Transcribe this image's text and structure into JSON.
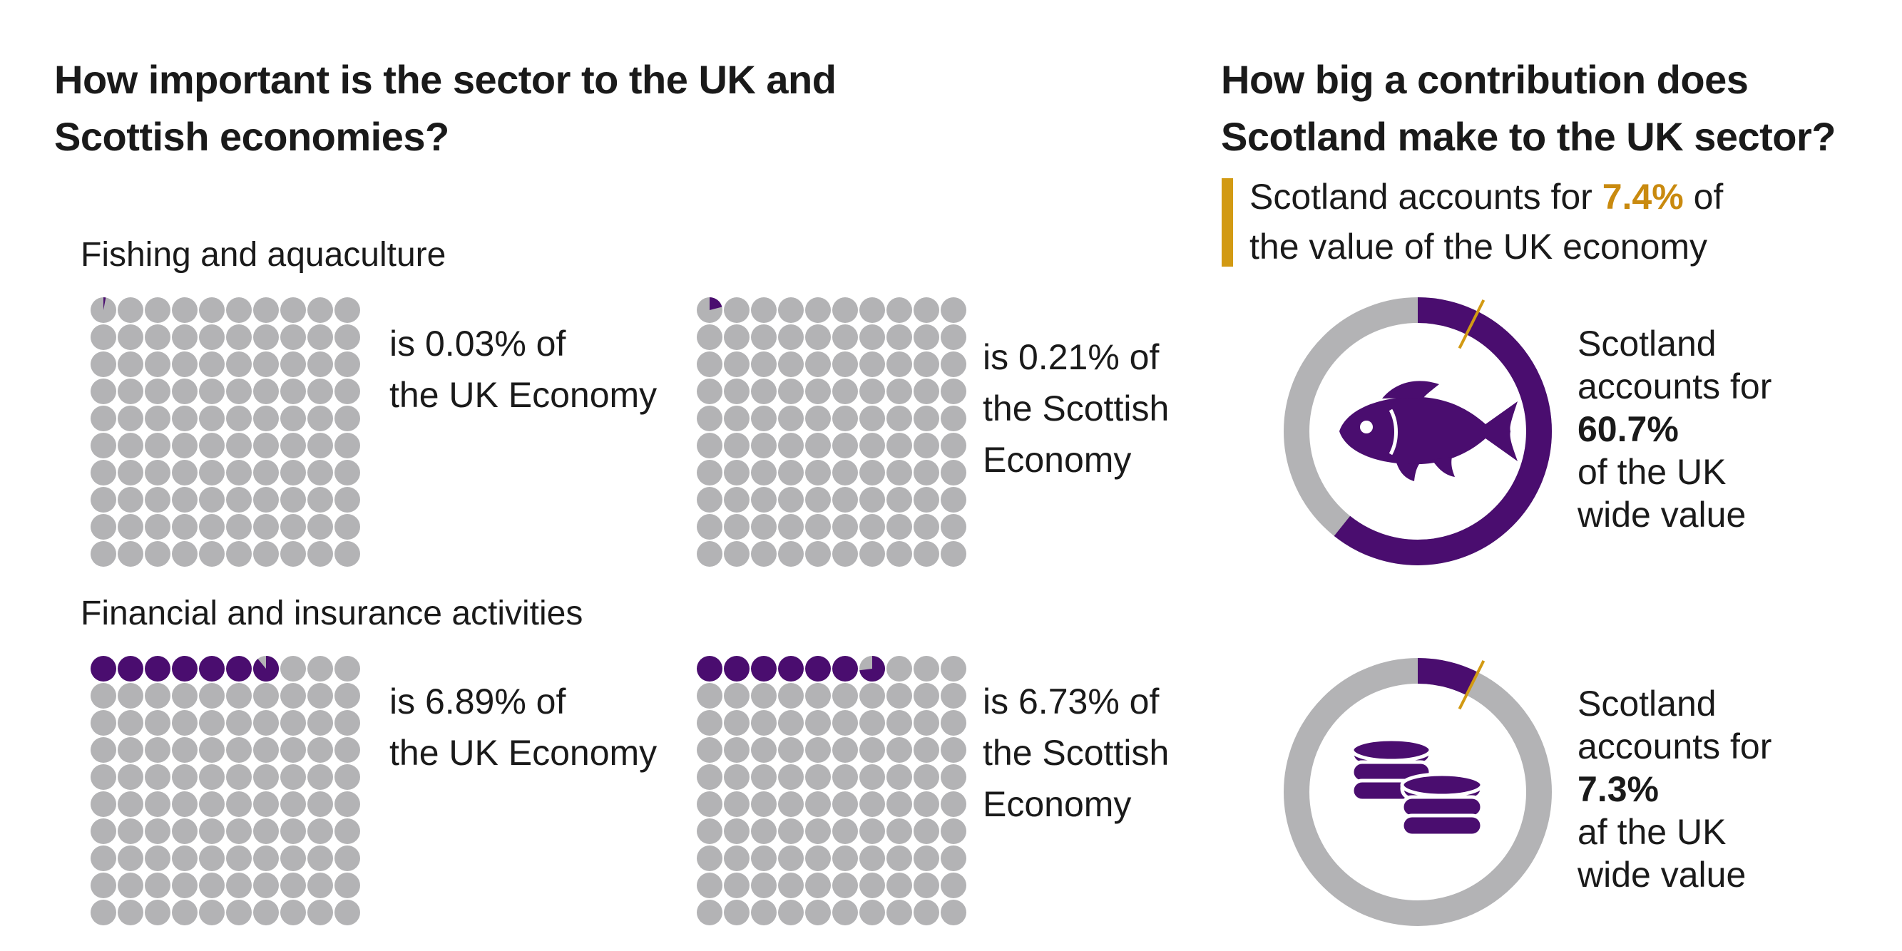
{
  "left_title": {
    "line1": "How important is the sector to the UK and",
    "line2": "Scottish economies?"
  },
  "right_title": {
    "line1": "How big a contribution does",
    "line2": "Scotland make to the UK sector?"
  },
  "highlight": {
    "prefix": "Scotland accounts for ",
    "value": "7.4%",
    "suffix": " of",
    "line2": "the value of the UK economy"
  },
  "colors": {
    "filled": "#4a0d6f",
    "empty": "#b3b3b5",
    "accent": "#d29a13"
  },
  "chart_data": [
    {
      "type": "waffle",
      "sector": "Fishing and aquaculture",
      "grid": [
        10,
        10
      ],
      "panels": [
        {
          "value_pct": 0.03,
          "caption_line1": "is 0.03% of",
          "caption_line2": "the UK Economy",
          "caption_line3": ""
        },
        {
          "value_pct": 0.21,
          "caption_line1": "is 0.21% of",
          "caption_line2": "the Scottish",
          "caption_line3": "Economy"
        }
      ]
    },
    {
      "type": "waffle",
      "sector": "Financial and insurance activities",
      "grid": [
        10,
        10
      ],
      "panels": [
        {
          "value_pct": 6.89,
          "caption_line1": "is 6.89% of",
          "caption_line2": "the UK Economy",
          "caption_line3": ""
        },
        {
          "value_pct": 6.73,
          "caption_line1": "is 6.73% of",
          "caption_line2": "the Scottish",
          "caption_line3": "Economy"
        }
      ]
    },
    {
      "type": "pie",
      "subtype": "donut",
      "icon": "fish-icon",
      "value_pct": 60.7,
      "reference_pct": 7.4,
      "text": {
        "line1": "Scotland",
        "line2": "accounts for",
        "value": "60.7%",
        "line4": "of the UK",
        "line5": "wide value"
      }
    },
    {
      "type": "pie",
      "subtype": "donut",
      "icon": "coins-icon",
      "value_pct": 7.3,
      "reference_pct": 7.4,
      "text": {
        "line1": "Scotland",
        "line2": "accounts for",
        "value": "7.3%",
        "line4": "af the UK",
        "line5": "wide value"
      }
    }
  ]
}
